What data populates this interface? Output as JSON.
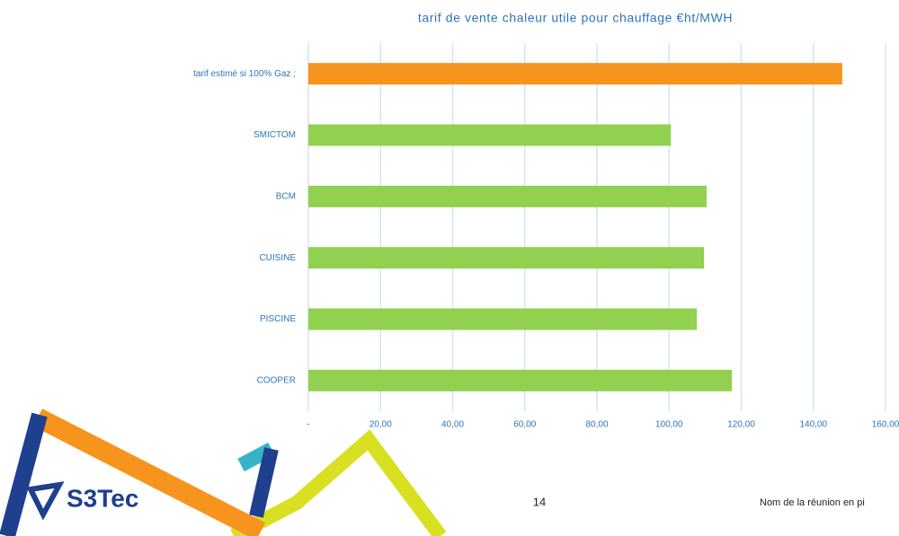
{
  "chart_data": {
    "type": "bar",
    "orientation": "horizontal",
    "title": "tarif de vente chaleur utile pour chauffage €ht/MWH",
    "categories": [
      "tarif estimé si 100% Gaz ;",
      "SMICTOM",
      "BCM",
      "CUISINE",
      "PISCINE",
      "COOPER"
    ],
    "values": [
      148,
      100.5,
      110.4,
      109.7,
      107.7,
      117.4
    ],
    "colors": [
      "#f7941d",
      "#92d050",
      "#92d050",
      "#92d050",
      "#92d050",
      "#92d050"
    ],
    "xlim": [
      0,
      160
    ],
    "xticks": [
      {
        "value": 0,
        "label": "-"
      },
      {
        "value": 20,
        "label": "20,00"
      },
      {
        "value": 40,
        "label": "40,00"
      },
      {
        "value": 60,
        "label": "60,00"
      },
      {
        "value": 80,
        "label": "80,00"
      },
      {
        "value": 100,
        "label": "100,00"
      },
      {
        "value": 120,
        "label": "120,00"
      },
      {
        "value": 140,
        "label": "140,00"
      },
      {
        "value": 160,
        "label": "160,00"
      }
    ],
    "grid": true
  },
  "footer": {
    "page": "14",
    "text": "Nom de la réunion en pi"
  },
  "logo": "S3Tec"
}
